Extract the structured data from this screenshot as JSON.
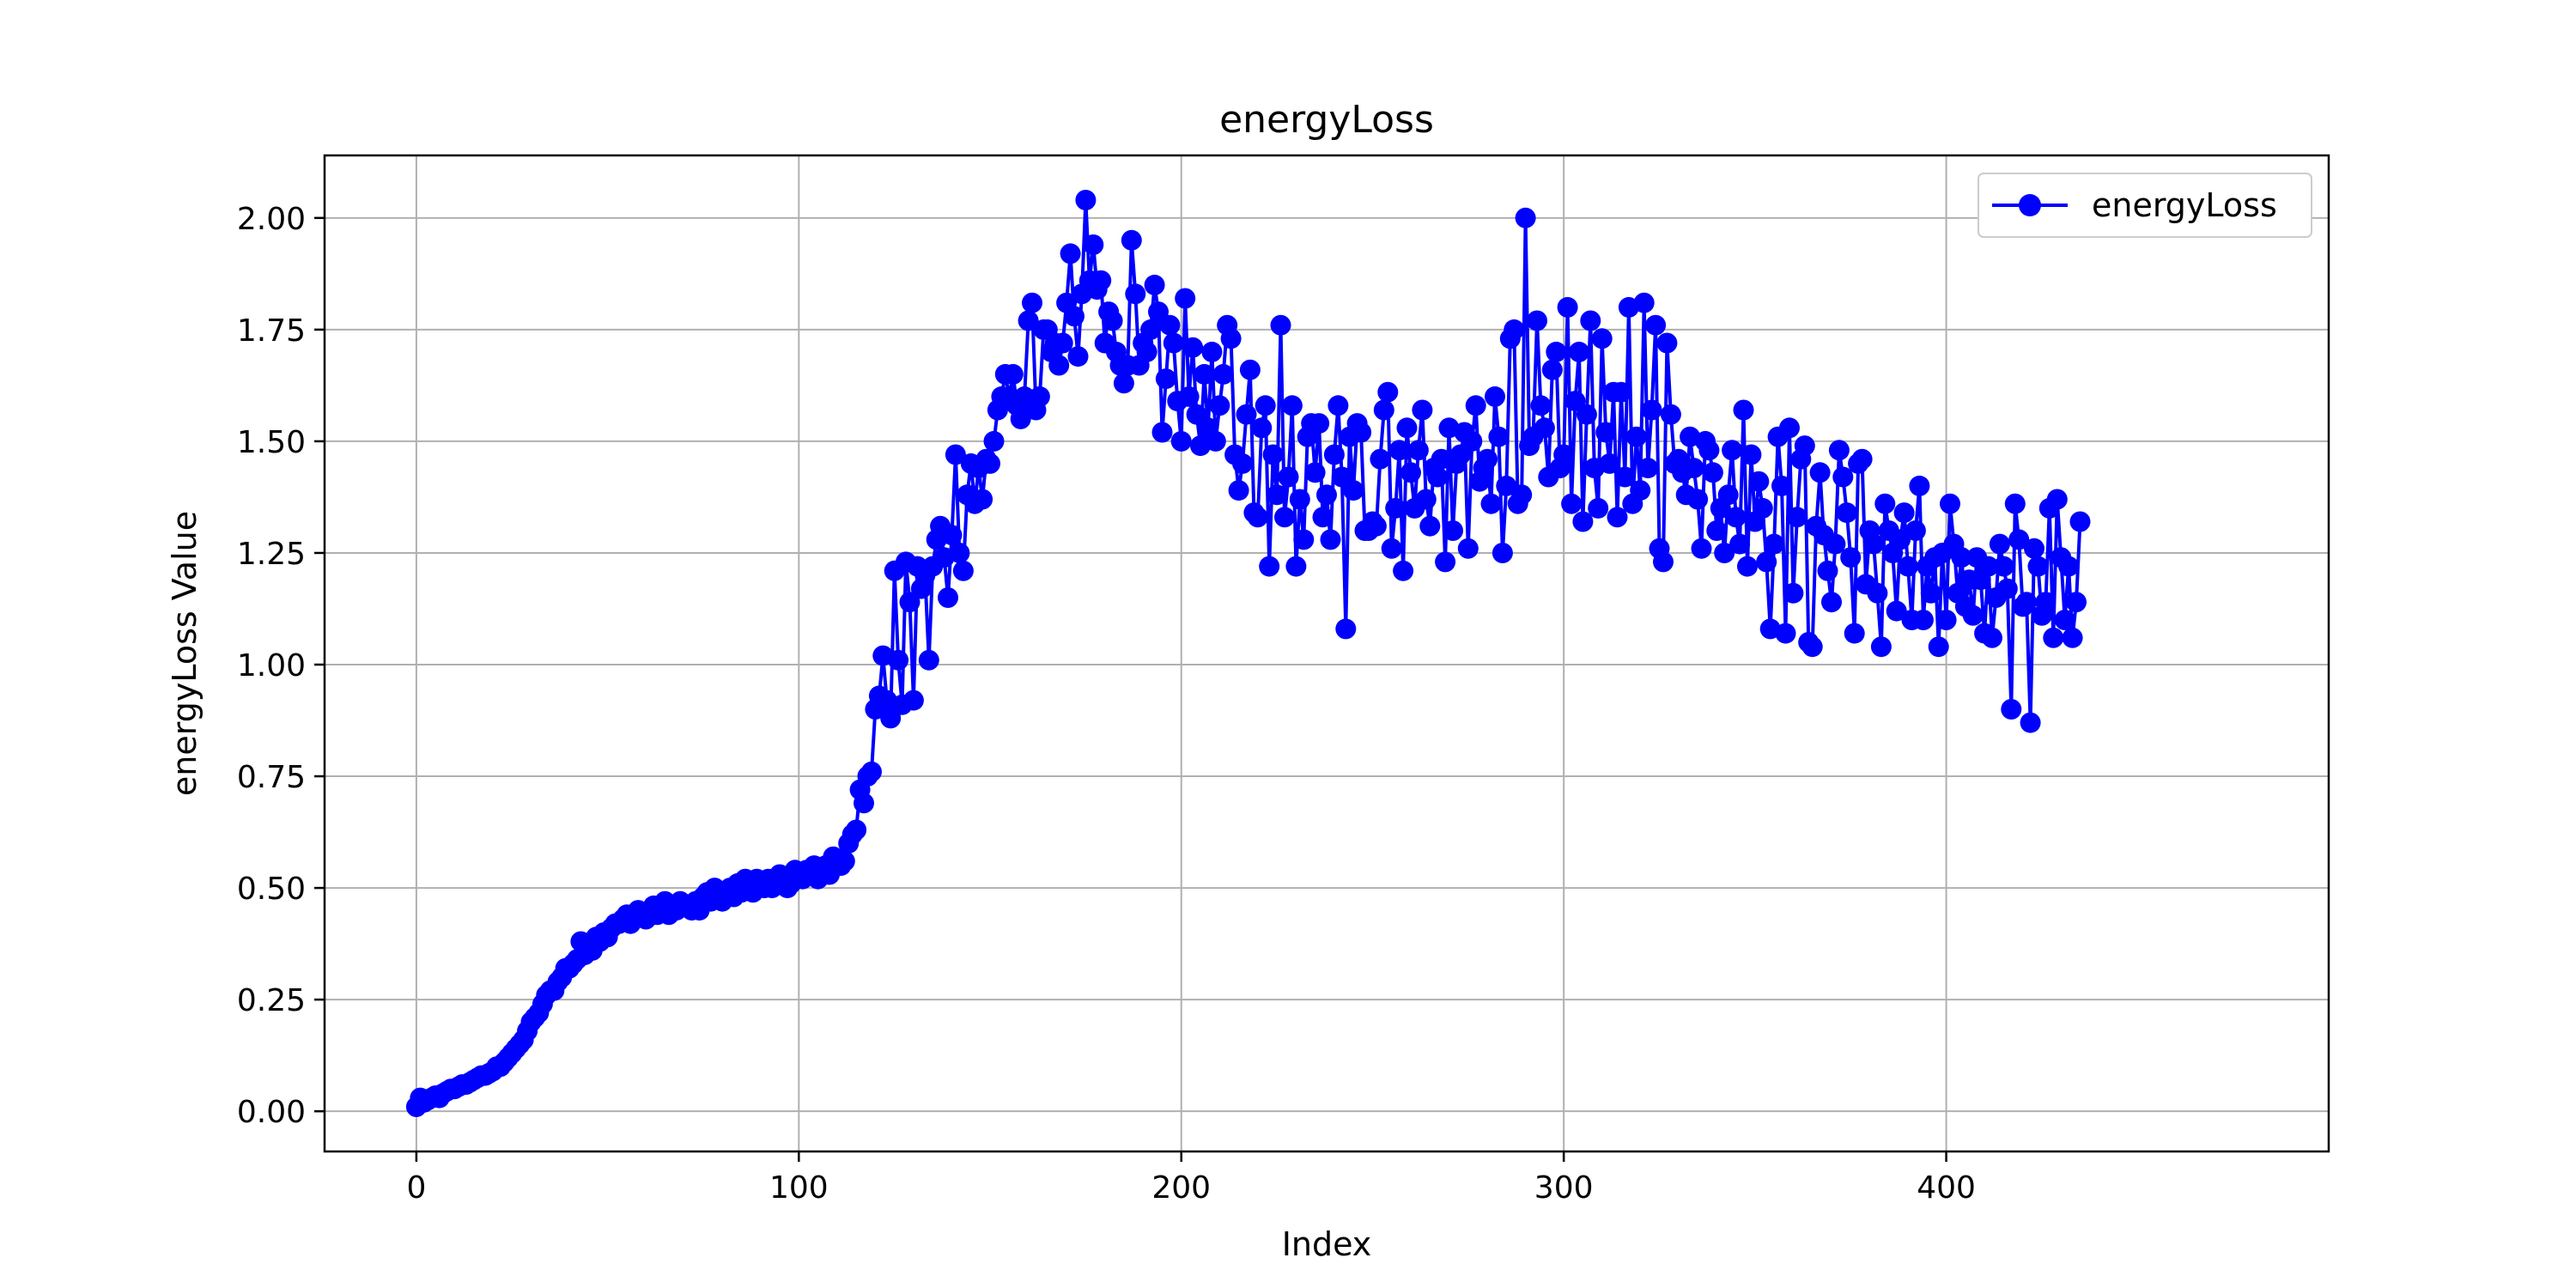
{
  "chart_data": {
    "type": "line",
    "title": "energyLoss",
    "xlabel": "Index",
    "ylabel": "energyLoss Value",
    "xlim": [
      -24,
      500
    ],
    "ylim": [
      -0.09,
      2.14
    ],
    "xticks": [
      0,
      100,
      200,
      300,
      400
    ],
    "yticks": [
      0.0,
      0.25,
      0.5,
      0.75,
      1.0,
      1.25,
      1.5,
      1.75,
      2.0
    ],
    "xtick_labels": [
      "0",
      "100",
      "200",
      "300",
      "400"
    ],
    "ytick_labels": [
      "0.00",
      "0.25",
      "0.50",
      "0.75",
      "1.00",
      "1.25",
      "1.50",
      "1.75",
      "2.00"
    ],
    "grid": true,
    "legend_position": "top-right",
    "series": [
      {
        "name": "energyLoss",
        "color": "#0000ff",
        "marker": "circle",
        "values": [
          0.01,
          0.03,
          0.02,
          0.025,
          0.03,
          0.035,
          0.03,
          0.04,
          0.045,
          0.05,
          0.05,
          0.055,
          0.06,
          0.06,
          0.065,
          0.07,
          0.075,
          0.08,
          0.08,
          0.085,
          0.09,
          0.1,
          0.1,
          0.11,
          0.12,
          0.13,
          0.14,
          0.15,
          0.16,
          0.18,
          0.2,
          0.21,
          0.22,
          0.24,
          0.26,
          0.27,
          0.27,
          0.29,
          0.3,
          0.32,
          0.32,
          0.33,
          0.34,
          0.38,
          0.35,
          0.37,
          0.36,
          0.39,
          0.38,
          0.4,
          0.39,
          0.41,
          0.42,
          0.42,
          0.43,
          0.44,
          0.42,
          0.44,
          0.45,
          0.44,
          0.43,
          0.45,
          0.46,
          0.44,
          0.45,
          0.47,
          0.44,
          0.46,
          0.45,
          0.47,
          0.46,
          0.46,
          0.45,
          0.47,
          0.45,
          0.48,
          0.49,
          0.47,
          0.5,
          0.48,
          0.47,
          0.49,
          0.5,
          0.48,
          0.51,
          0.49,
          0.52,
          0.5,
          0.49,
          0.52,
          0.51,
          0.5,
          0.52,
          0.5,
          0.51,
          0.53,
          0.52,
          0.5,
          0.51,
          0.54,
          0.53,
          0.52,
          0.54,
          0.53,
          0.55,
          0.52,
          0.54,
          0.55,
          0.53,
          0.57,
          0.56,
          0.55,
          0.56,
          0.6,
          0.62,
          0.63,
          0.72,
          0.69,
          0.75,
          0.76,
          0.9,
          0.93,
          1.02,
          0.92,
          0.88,
          1.21,
          1.01,
          0.91,
          1.23,
          1.14,
          0.92,
          1.22,
          1.17,
          1.2,
          1.01,
          1.22,
          1.28,
          1.31,
          1.24,
          1.15,
          1.29,
          1.47,
          1.25,
          1.21,
          1.38,
          1.45,
          1.36,
          1.44,
          1.37,
          1.46,
          1.45,
          1.5,
          1.57,
          1.6,
          1.65,
          1.6,
          1.65,
          1.58,
          1.55,
          1.6,
          1.77,
          1.81,
          1.57,
          1.6,
          1.75,
          1.75,
          1.7,
          1.72,
          1.67,
          1.72,
          1.81,
          1.92,
          1.78,
          1.69,
          1.83,
          2.04,
          1.86,
          1.94,
          1.84,
          1.86,
          1.72,
          1.79,
          1.77,
          1.7,
          1.67,
          1.63,
          1.67,
          1.95,
          1.83,
          1.67,
          1.72,
          1.7,
          1.75,
          1.85,
          1.79,
          1.52,
          1.64,
          1.76,
          1.72,
          1.59,
          1.5,
          1.82,
          1.6,
          1.71,
          1.56,
          1.49,
          1.65,
          1.53,
          1.7,
          1.5,
          1.58,
          1.65,
          1.76,
          1.73,
          1.47,
          1.39,
          1.45,
          1.56,
          1.66,
          1.34,
          1.33,
          1.53,
          1.58,
          1.22,
          1.47,
          1.38,
          1.76,
          1.33,
          1.42,
          1.58,
          1.22,
          1.37,
          1.28,
          1.51,
          1.54,
          1.43,
          1.54,
          1.33,
          1.38,
          1.28,
          1.47,
          1.58,
          1.42,
          1.08,
          1.51,
          1.39,
          1.54,
          1.52,
          1.3,
          1.3,
          1.32,
          1.31,
          1.46,
          1.57,
          1.61,
          1.26,
          1.35,
          1.48,
          1.21,
          1.53,
          1.43,
          1.35,
          1.48,
          1.57,
          1.37,
          1.31,
          1.44,
          1.42,
          1.46,
          1.23,
          1.53,
          1.3,
          1.45,
          1.47,
          1.52,
          1.26,
          1.5,
          1.58,
          1.41,
          1.44,
          1.46,
          1.36,
          1.6,
          1.51,
          1.25,
          1.4,
          1.73,
          1.75,
          1.36,
          1.38,
          2.0,
          1.49,
          1.51,
          1.77,
          1.58,
          1.53,
          1.42,
          1.66,
          1.7,
          1.44,
          1.47,
          1.8,
          1.36,
          1.59,
          1.7,
          1.32,
          1.56,
          1.77,
          1.44,
          1.35,
          1.73,
          1.52,
          1.45,
          1.61,
          1.33,
          1.61,
          1.42,
          1.8,
          1.36,
          1.51,
          1.39,
          1.81,
          1.44,
          1.57,
          1.76,
          1.26,
          1.23,
          1.72,
          1.56,
          1.45,
          1.46,
          1.43,
          1.38,
          1.51,
          1.44,
          1.37,
          1.26,
          1.5,
          1.48,
          1.43,
          1.3,
          1.35,
          1.25,
          1.38,
          1.48,
          1.33,
          1.27,
          1.57,
          1.22,
          1.47,
          1.32,
          1.41,
          1.35,
          1.23,
          1.08,
          1.27,
          1.51,
          1.4,
          1.07,
          1.53,
          1.16,
          1.33,
          1.46,
          1.49,
          1.05,
          1.04,
          1.31,
          1.43,
          1.29,
          1.21,
          1.14,
          1.27,
          1.48,
          1.42,
          1.34,
          1.24,
          1.07,
          1.45,
          1.46,
          1.18,
          1.3,
          1.27,
          1.16,
          1.04,
          1.36,
          1.3,
          1.25,
          1.12,
          1.28,
          1.34,
          1.22,
          1.1,
          1.3,
          1.4,
          1.1,
          1.22,
          1.16,
          1.24,
          1.04,
          1.25,
          1.1,
          1.36,
          1.27,
          1.16,
          1.24,
          1.13,
          1.19,
          1.11,
          1.24,
          1.19,
          1.07,
          1.22,
          1.06,
          1.15,
          1.27,
          1.22,
          1.17,
          0.9,
          1.36,
          1.28,
          1.13,
          1.14,
          0.87,
          1.26,
          1.22,
          1.11,
          1.14,
          1.35,
          1.06,
          1.37,
          1.24,
          1.1,
          1.22,
          1.06,
          1.14,
          1.32
        ]
      }
    ]
  }
}
